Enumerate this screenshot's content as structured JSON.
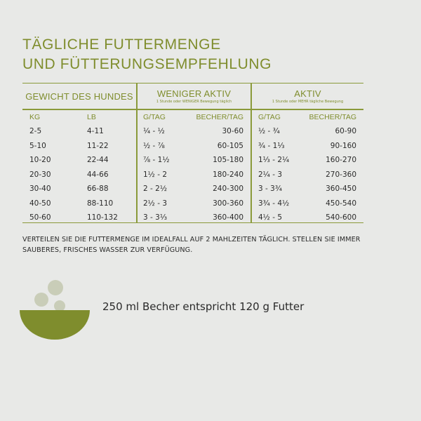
{
  "title": {
    "line1": "TÄGLICHE FUTTERMENGE",
    "line2": "UND FÜTTERUNGSEMPFEHLUNG"
  },
  "table": {
    "groups": {
      "weight": {
        "title": "GEWICHT DES HUNDES"
      },
      "less_active": {
        "title": "WENIGER AKTIV",
        "sub": "1 Stunde oder WENIGER Bewegung täglich"
      },
      "active": {
        "title": "AKTIV",
        "sub": "1 Stunde oder MEHR tägliche Bewegung"
      }
    },
    "columns": [
      "KG",
      "LB",
      "G/TAG",
      "BECHER/TAG",
      "G/TAG",
      "BECHER/TAG"
    ],
    "rows": [
      [
        "2-5",
        "4-11",
        "¼ - ½",
        "30-60",
        "½ - ¾",
        "60-90"
      ],
      [
        "5-10",
        "11-22",
        "½ - ⅞",
        "60-105",
        "¾ - 1⅓",
        "90-160"
      ],
      [
        "10-20",
        "22-44",
        "⅞ - 1½",
        "105-180",
        "1⅓ - 2¼",
        "160-270"
      ],
      [
        "20-30",
        "44-66",
        "1½ - 2",
        "180-240",
        "2¼ - 3",
        "270-360"
      ],
      [
        "30-40",
        "66-88",
        "2 - 2½",
        "240-300",
        "3 - 3¾",
        "360-450"
      ],
      [
        "40-50",
        "88-110",
        "2½ - 3",
        "300-360",
        "3¾ - 4½",
        "450-540"
      ],
      [
        "50-60",
        "110-132",
        "3 - 3⅓",
        "360-400",
        "4½ - 5",
        "540-600"
      ]
    ]
  },
  "note": "VERTEILEN SIE DIE FUTTERMENGE IM IDEALFALL AUF 2 MAHLZEITEN TÄGLICH. STELLEN SIE IMMER SAUBERES, FRISCHES WASSER ZUR VERFÜGUNG.",
  "cup_info": "250 ml Becher entspricht 120 g Futter",
  "colors": {
    "accent": "#7f8d2d",
    "bowl": "#7f8d2d",
    "kibble": "#c9cdb8",
    "background": "#e8e9e7"
  },
  "icon": "bowl-with-kibble-icon"
}
